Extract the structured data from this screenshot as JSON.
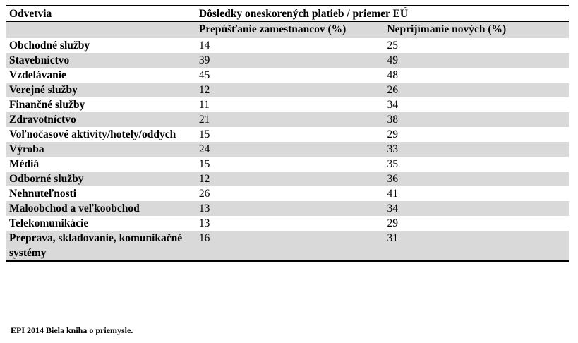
{
  "table": {
    "header_sector": "Odvetvia",
    "header_group": "Dôsledky oneskorených platieb / priemer EÚ",
    "sub_col1": "Prepúšťanie zamestnancov (%)",
    "sub_col2": "Neprijímanie nových (%)",
    "rows": [
      {
        "sector": "Obchodné služby",
        "layoffs": "14",
        "no_hiring": "25"
      },
      {
        "sector": "Stavebníctvo",
        "layoffs": "39",
        "no_hiring": "49"
      },
      {
        "sector": "Vzdelávanie",
        "layoffs": "45",
        "no_hiring": "48"
      },
      {
        "sector": "Verejné služby",
        "layoffs": "12",
        "no_hiring": "26"
      },
      {
        "sector": "Finančné služby",
        "layoffs": "11",
        "no_hiring": "34"
      },
      {
        "sector": "Zdravotníctvo",
        "layoffs": "21",
        "no_hiring": "38"
      },
      {
        "sector": "Voľnočasové aktivity/hotely/oddych",
        "layoffs": "15",
        "no_hiring": "29"
      },
      {
        "sector": "Výroba",
        "layoffs": "24",
        "no_hiring": "33"
      },
      {
        "sector": "Médiá",
        "layoffs": "15",
        "no_hiring": "35"
      },
      {
        "sector": "Odborné služby",
        "layoffs": "12",
        "no_hiring": "36"
      },
      {
        "sector": "Nehnuteľnosti",
        "layoffs": "26",
        "no_hiring": "41"
      },
      {
        "sector": "Maloobchod a veľkoobchod",
        "layoffs": "13",
        "no_hiring": "34"
      },
      {
        "sector": "Telekomunikácie",
        "layoffs": "13",
        "no_hiring": "29"
      },
      {
        "sector": "Preprava, skladovanie, komunikačné systémy",
        "layoffs": "16",
        "no_hiring": "31"
      }
    ],
    "shade_color": "#d9d9d9"
  },
  "footnote": "EPI 2014 Biela kniha o priemysle."
}
